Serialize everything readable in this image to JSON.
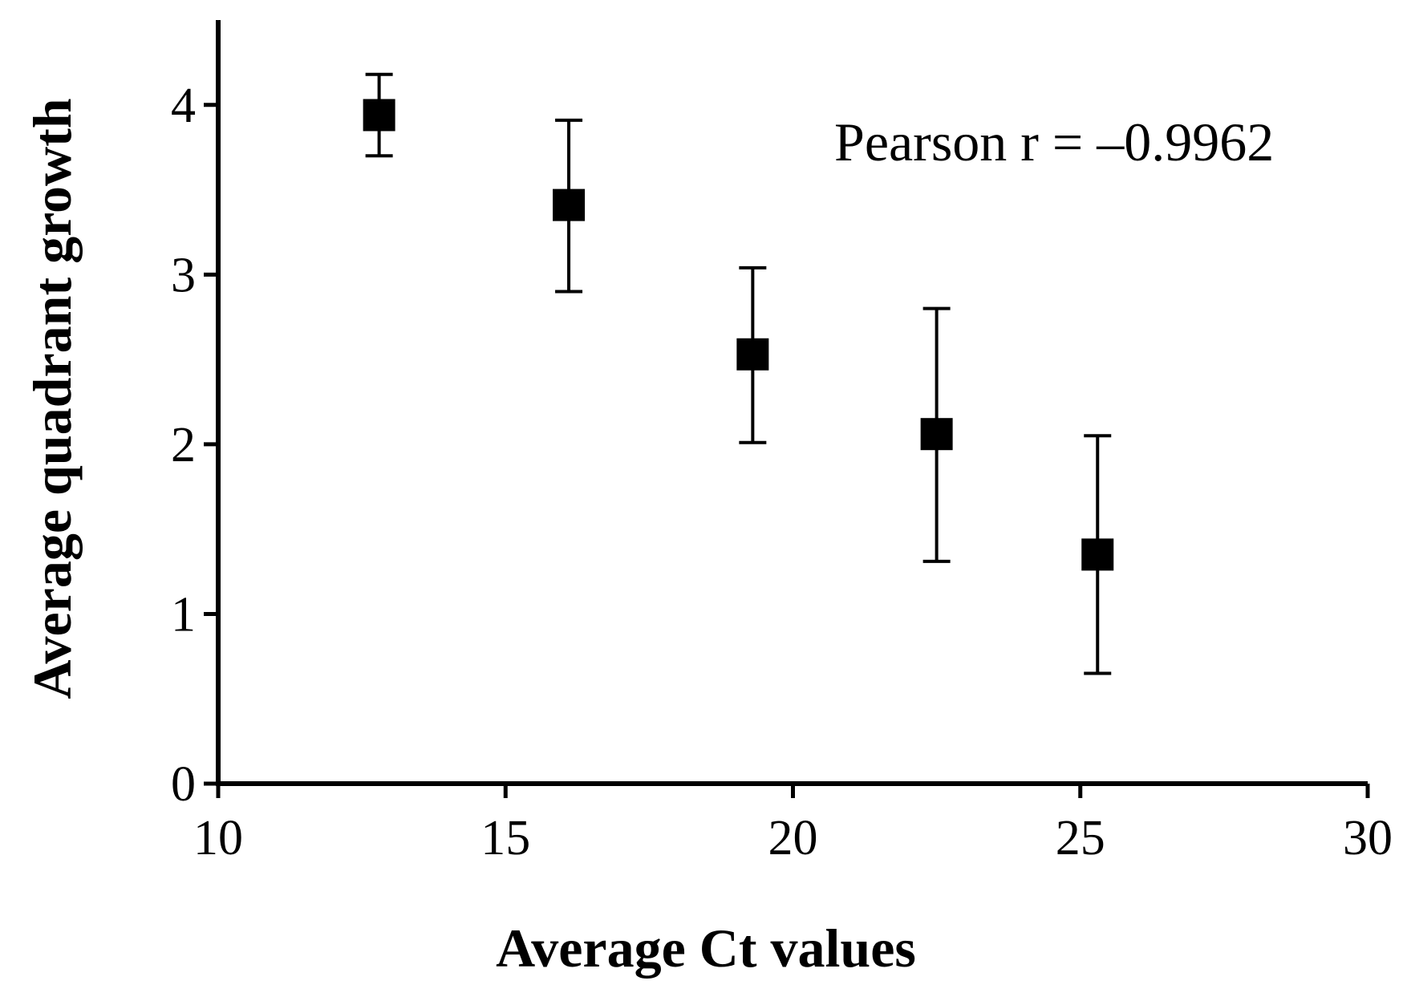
{
  "chart_data": {
    "type": "scatter",
    "title": "",
    "xlabel": "Average Ct values",
    "ylabel": "Average quadrant growth",
    "xlim": [
      10,
      30
    ],
    "ylim": [
      0,
      4.5
    ],
    "xticks": [
      10,
      15,
      20,
      25,
      30
    ],
    "yticks": [
      0,
      1,
      2,
      3,
      4
    ],
    "grid": false,
    "series": [
      {
        "name": "Average quadrant growth",
        "marker": "square",
        "color": "#000000",
        "points": [
          {
            "x": 12.8,
            "y": 3.94,
            "err_low": 3.7,
            "err_high": 4.18
          },
          {
            "x": 16.1,
            "y": 3.41,
            "err_low": 2.9,
            "err_high": 3.91
          },
          {
            "x": 19.3,
            "y": 2.53,
            "err_low": 2.01,
            "err_high": 3.04
          },
          {
            "x": 22.5,
            "y": 2.06,
            "err_low": 1.31,
            "err_high": 2.8
          },
          {
            "x": 25.3,
            "y": 1.35,
            "err_low": 0.65,
            "err_high": 2.05
          }
        ]
      }
    ],
    "annotation": "Pearson r = –0.9962"
  }
}
